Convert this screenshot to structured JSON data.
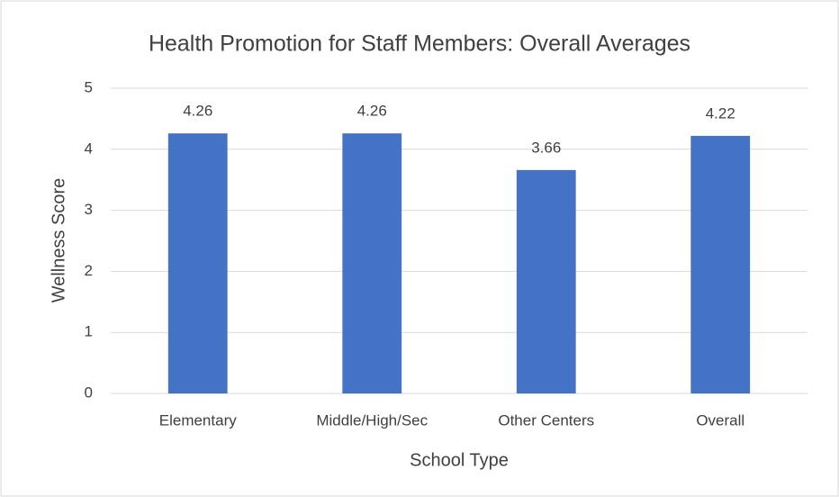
{
  "chart_data": {
    "type": "bar",
    "title": "Health Promotion for Staff Members: Overall Averages",
    "x_label": "School Type",
    "y_label": "Wellness Score",
    "categories": [
      "Elementary",
      "Middle/High/Sec",
      "Other Centers",
      "Overall"
    ],
    "values": [
      4.26,
      4.26,
      3.66,
      4.22
    ],
    "color": "#4472c4",
    "ylim": [
      0,
      5
    ],
    "yticks": [
      0,
      1,
      2,
      3,
      4,
      5
    ],
    "grid": true
  }
}
